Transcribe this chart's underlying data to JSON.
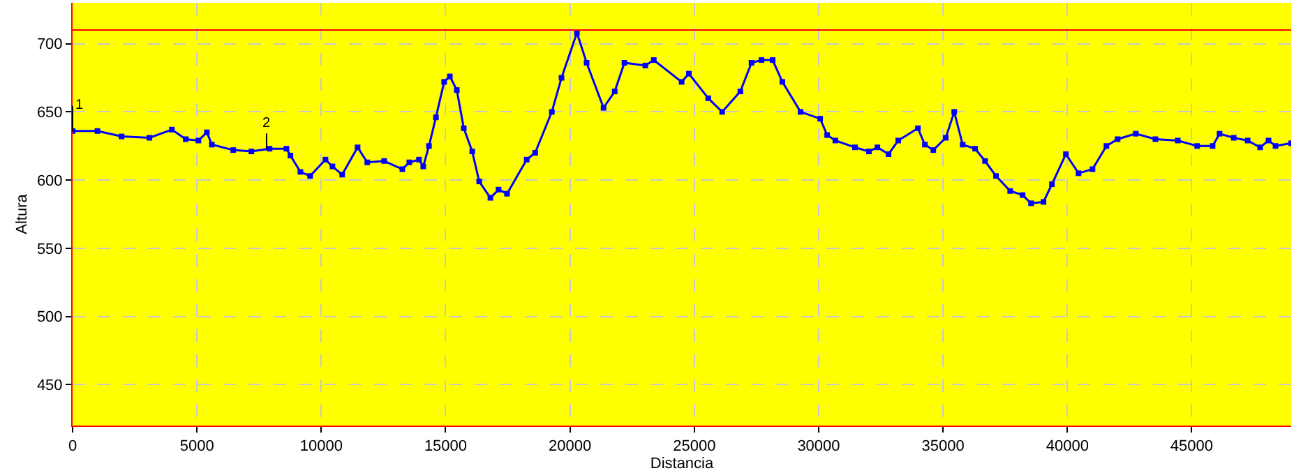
{
  "chart_data": {
    "type": "line",
    "xlabel": "Distancia",
    "ylabel": "Altura",
    "x": [
      0,
      1000,
      1970,
      3090,
      3990,
      4550,
      5060,
      5400,
      5600,
      6460,
      7190,
      7920,
      8600,
      8760,
      9160,
      9550,
      10170,
      10450,
      10840,
      11460,
      11850,
      12530,
      13260,
      13540,
      13930,
      14100,
      14330,
      14610,
      14940,
      15170,
      15450,
      15730,
      16070,
      16350,
      16800,
      17130,
      17470,
      18260,
      18600,
      19270,
      19660,
      20280,
      20670,
      21350,
      21800,
      22190,
      23030,
      23370,
      24490,
      24780,
      25560,
      26120,
      26850,
      27300,
      27700,
      28150,
      28540,
      29270,
      30060,
      30340,
      30670,
      31460,
      32020,
      32360,
      32810,
      33200,
      33990,
      34270,
      34610,
      35110,
      35450,
      35790,
      36290,
      36690,
      37130,
      37700,
      38200,
      38540,
      39040,
      39380,
      39940,
      40450,
      41010,
      41570,
      42020,
      42750,
      43540,
      44440,
      45220,
      45840,
      46120,
      46690,
      47250,
      47750,
      48090,
      48370,
      49000
    ],
    "series": [
      {
        "color": "#0000ff",
        "values": [
          636,
          636,
          632,
          631,
          637,
          630,
          629,
          635,
          626,
          622,
          621,
          623,
          623,
          618,
          606,
          603,
          615,
          610,
          604,
          624,
          613,
          614,
          608,
          613,
          615,
          610,
          625,
          646,
          672,
          676,
          666,
          638,
          621,
          599,
          587,
          593,
          590,
          615,
          620,
          650,
          675,
          708,
          686,
          653,
          665,
          686,
          684,
          688,
          672,
          678,
          660,
          650,
          665,
          686,
          688,
          688,
          672,
          650,
          645,
          633,
          629,
          624,
          621,
          624,
          619,
          629,
          638,
          626,
          622,
          631,
          650,
          626,
          623,
          614,
          603,
          592,
          589,
          583,
          584,
          597,
          619,
          605,
          608,
          625,
          630,
          634,
          630,
          629,
          625,
          625,
          634,
          631,
          629,
          624,
          629,
          625,
          627
        ]
      }
    ],
    "xlim": [
      0,
      49000
    ],
    "xticks": [
      0,
      5000,
      10000,
      15000,
      20000,
      25000,
      30000,
      35000,
      40000,
      45000
    ],
    "ylim": [
      420,
      730
    ],
    "yticks": [
      450,
      500,
      550,
      600,
      650,
      700
    ],
    "ref_lines": [
      {
        "axis": "y",
        "value": 710,
        "color": "#ff0000"
      }
    ],
    "annotations": [
      {
        "text": "1",
        "x": 0,
        "y": 636
      },
      {
        "text": "2",
        "x": 7800,
        "y": 623
      }
    ],
    "grid": true,
    "marker": "square",
    "line_style": "solid"
  }
}
